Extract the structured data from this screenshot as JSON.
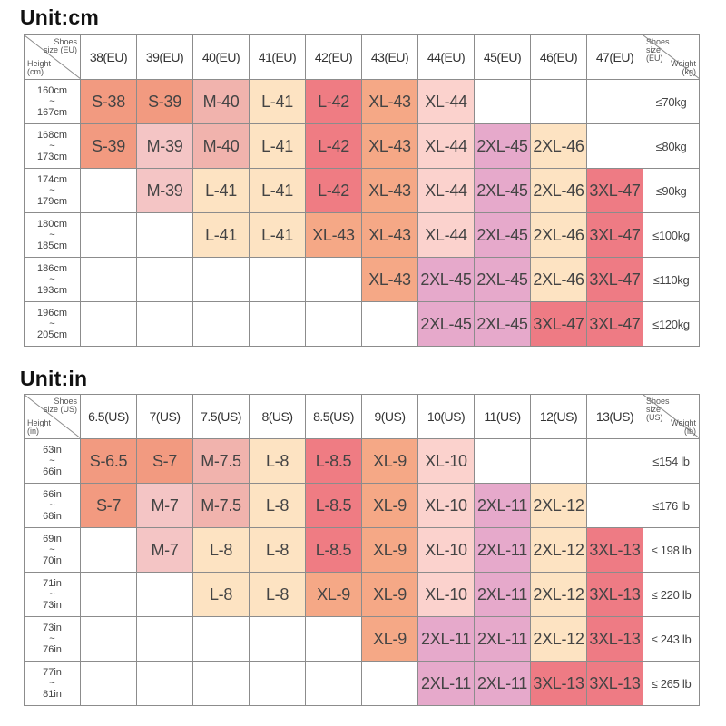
{
  "cm": {
    "title": "Unit:cm",
    "corner": {
      "shoes": "Shoes",
      "size": "size",
      "unit": "(EU)",
      "height": "Height",
      "hunit": "(cm)"
    },
    "wcorner": {
      "shoes": "Shoes",
      "size": "size",
      "unit": "(EU)",
      "weight": "Weight",
      "wunit": "(kg)"
    },
    "columns": [
      "38(EU)",
      "39(EU)",
      "40(EU)",
      "41(EU)",
      "42(EU)",
      "43(EU)",
      "44(EU)",
      "45(EU)",
      "46(EU)",
      "47(EU)"
    ],
    "rows": [
      {
        "h1": "160cm",
        "tilde": "~",
        "h2": "167cm",
        "weight": "≤70kg",
        "cells": [
          "S-38",
          "S-39",
          "M-40",
          "L-41",
          "L-42",
          "XL-43",
          "XL-44",
          "",
          "",
          ""
        ]
      },
      {
        "h1": "168cm",
        "tilde": "~",
        "h2": "173cm",
        "weight": "≤80kg",
        "cells": [
          "S-39",
          "M-39",
          "M-40",
          "L-41",
          "L-42",
          "XL-43",
          "XL-44",
          "2XL-45",
          "2XL-46",
          ""
        ]
      },
      {
        "h1": "174cm",
        "tilde": "~",
        "h2": "179cm",
        "weight": "≤90kg",
        "cells": [
          "",
          "M-39",
          "L-41",
          "L-41",
          "L-42",
          "XL-43",
          "XL-44",
          "2XL-45",
          "2XL-46",
          "3XL-47"
        ]
      },
      {
        "h1": "180cm",
        "tilde": "~",
        "h2": "185cm",
        "weight": "≤100kg",
        "cells": [
          "",
          "",
          "L-41",
          "L-41",
          "XL-43",
          "XL-43",
          "XL-44",
          "2XL-45",
          "2XL-46",
          "3XL-47"
        ]
      },
      {
        "h1": "186cm",
        "tilde": "~",
        "h2": "193cm",
        "weight": "≤110kg",
        "cells": [
          "",
          "",
          "",
          "",
          "",
          "XL-43",
          "2XL-45",
          "2XL-45",
          "2XL-46",
          "3XL-47"
        ]
      },
      {
        "h1": "196cm",
        "tilde": "~",
        "h2": "205cm",
        "weight": "≤120kg",
        "cells": [
          "",
          "",
          "",
          "",
          "",
          "",
          "2XL-45",
          "2XL-45",
          "3XL-47",
          "3XL-47"
        ]
      }
    ]
  },
  "in": {
    "title": "Unit:in",
    "corner": {
      "shoes": "Shoes",
      "size": "size",
      "unit": "(US)",
      "height": "Height",
      "hunit": "(in)"
    },
    "wcorner": {
      "shoes": "Shoes",
      "size": "size",
      "unit": "(US)",
      "weight": "Weight",
      "wunit": "(lb)"
    },
    "columns": [
      "6.5(US)",
      "7(US)",
      "7.5(US)",
      "8(US)",
      "8.5(US)",
      "9(US)",
      "10(US)",
      "11(US)",
      "12(US)",
      "13(US)"
    ],
    "rows": [
      {
        "h1": "63in",
        "tilde": "~",
        "h2": "66in",
        "weight": "≤154 lb",
        "cells": [
          "S-6.5",
          "S-7",
          "M-7.5",
          "L-8",
          "L-8.5",
          "XL-9",
          "XL-10",
          "",
          "",
          ""
        ]
      },
      {
        "h1": "66in",
        "tilde": "~",
        "h2": "68in",
        "weight": "≤176 lb",
        "cells": [
          "S-7",
          "M-7",
          "M-7.5",
          "L-8",
          "L-8.5",
          "XL-9",
          "XL-10",
          "2XL-11",
          "2XL-12",
          ""
        ]
      },
      {
        "h1": "69in",
        "tilde": "~",
        "h2": "70in",
        "weight": "≤ 198 lb",
        "cells": [
          "",
          "M-7",
          "L-8",
          "L-8",
          "L-8.5",
          "XL-9",
          "XL-10",
          "2XL-11",
          "2XL-12",
          "3XL-13"
        ]
      },
      {
        "h1": "71in",
        "tilde": "~",
        "h2": "73in",
        "weight": "≤ 220 lb",
        "cells": [
          "",
          "",
          "L-8",
          "L-8",
          "XL-9",
          "XL-9",
          "XL-10",
          "2XL-11",
          "2XL-12",
          "3XL-13"
        ]
      },
      {
        "h1": "73in",
        "tilde": "~",
        "h2": "76in",
        "weight": "≤ 243 lb",
        "cells": [
          "",
          "",
          "",
          "",
          "",
          "XL-9",
          "2XL-11",
          "2XL-11",
          "2XL-12",
          "3XL-13"
        ]
      },
      {
        "h1": "77in",
        "tilde": "~",
        "h2": "81in",
        "weight": "≤ 265 lb",
        "cells": [
          "",
          "",
          "",
          "",
          "",
          "",
          "2XL-11",
          "2XL-11",
          "3XL-13",
          "3XL-13"
        ]
      }
    ]
  },
  "colors": {
    "S": "#f29a80",
    "M": "#f4c5c5",
    "L": "#fde3c2",
    "L2": "#ef7c83",
    "XL": "#f5a886",
    "2XL": "#e6a9cb",
    "3XL": "#ee7b84"
  }
}
